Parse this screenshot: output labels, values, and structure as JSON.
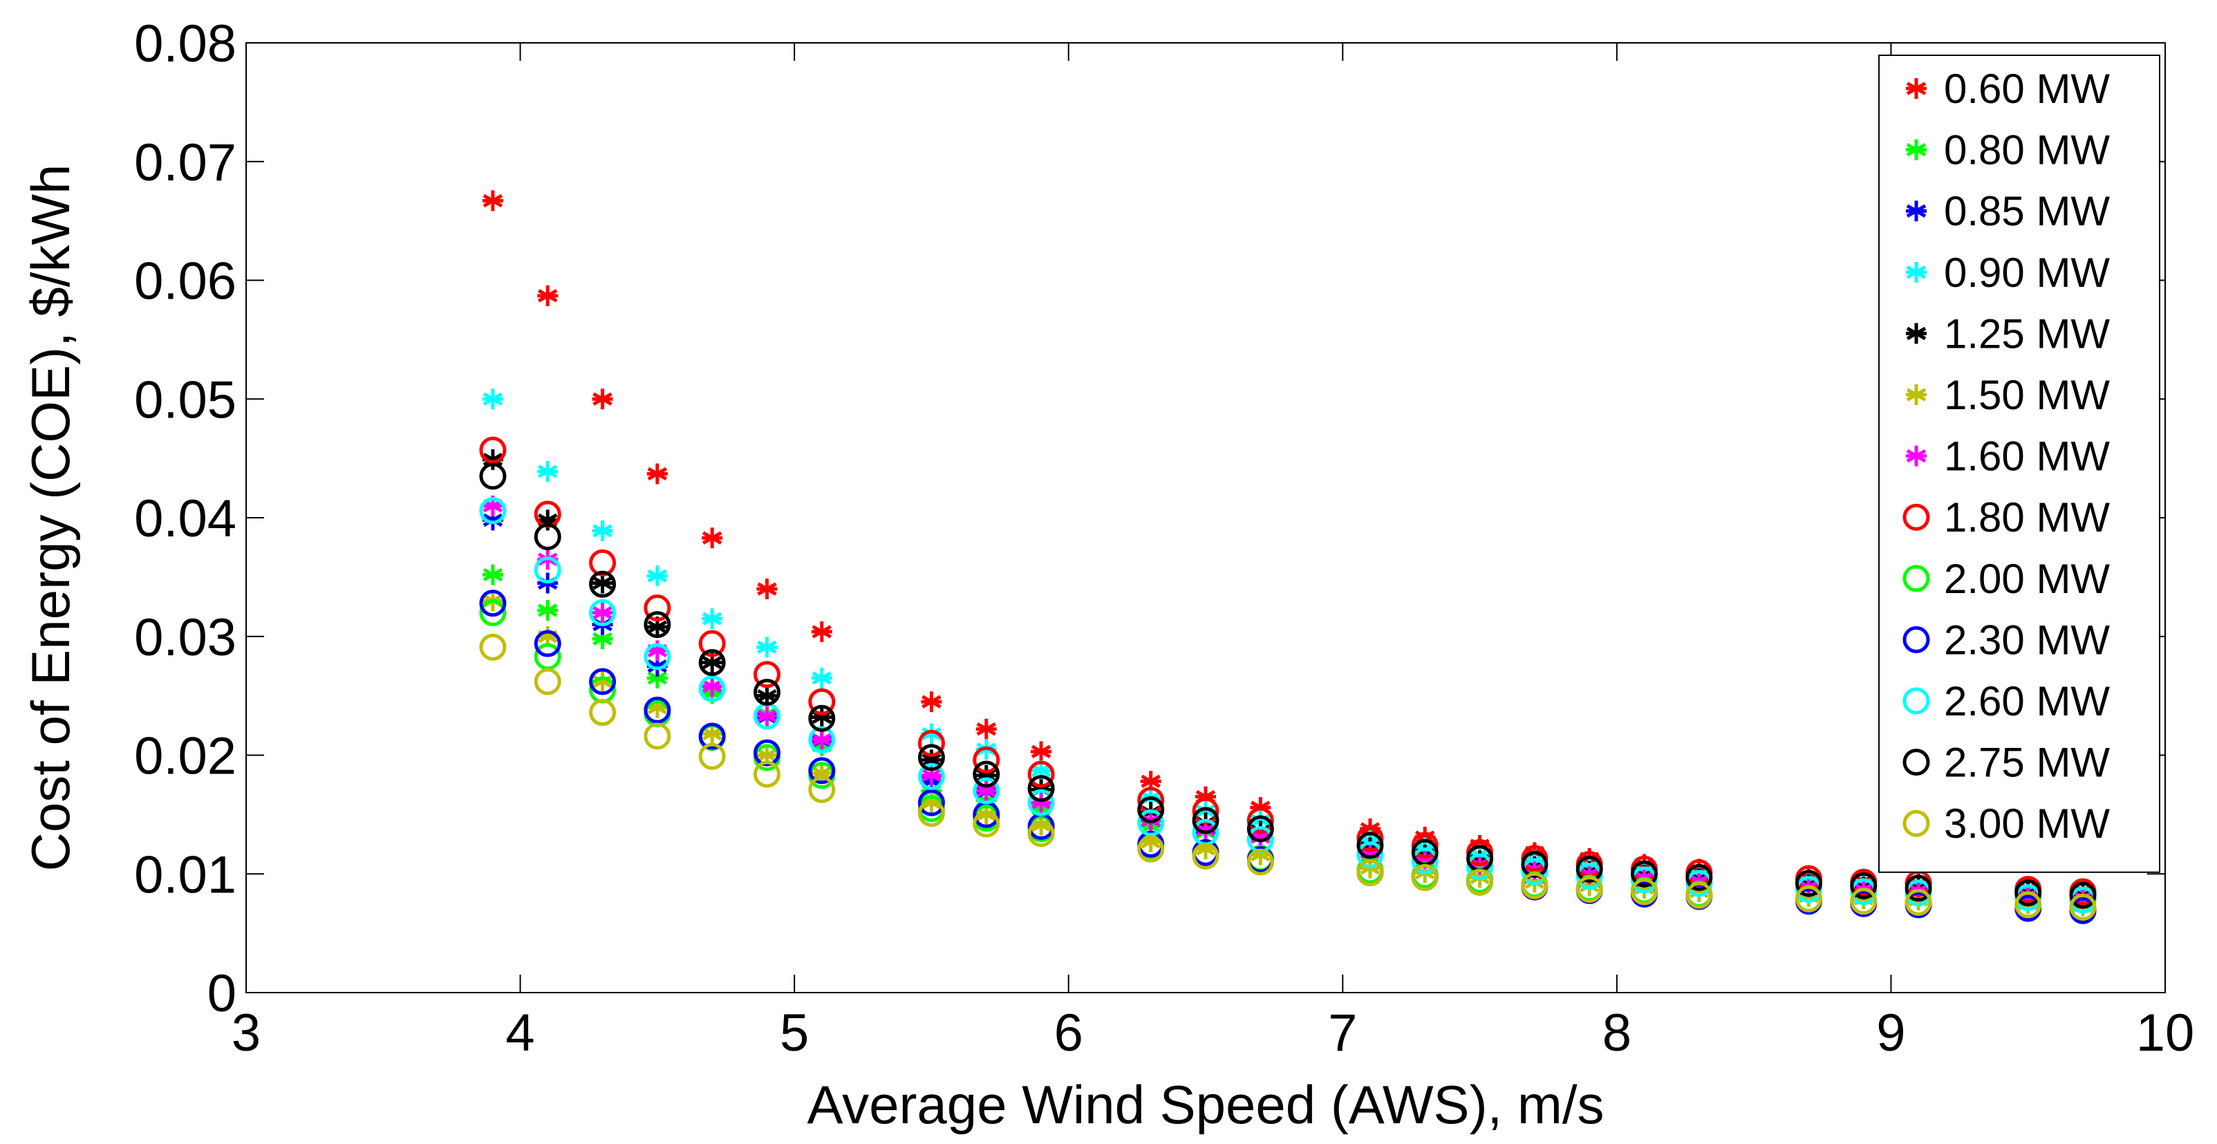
{
  "chart_data": {
    "type": "scatter",
    "title": "",
    "xlabel": "Average Wind Speed (AWS), m/s",
    "ylabel": "Cost of Energy (COE), $/kWh",
    "xlim": [
      3,
      10
    ],
    "ylim": [
      0,
      0.08
    ],
    "xticks": [
      3,
      4,
      5,
      6,
      7,
      8,
      9,
      10
    ],
    "yticks": [
      0,
      0.01,
      0.02,
      0.03,
      0.04,
      0.05,
      0.06,
      0.07,
      0.08
    ],
    "xtick_labels": [
      "3",
      "4",
      "5",
      "6",
      "7",
      "8",
      "9",
      "10"
    ],
    "ytick_labels": [
      "0",
      "0.01",
      "0.02",
      "0.03",
      "0.04",
      "0.05",
      "0.06",
      "0.07",
      "0.08"
    ],
    "grid": false,
    "legend_position": "top-right",
    "x": [
      3.9,
      4.1,
      4.3,
      4.5,
      4.7,
      4.9,
      5.1,
      5.5,
      5.7,
      5.9,
      6.3,
      6.5,
      6.7,
      7.1,
      7.3,
      7.5,
      7.7,
      7.9,
      8.1,
      8.3,
      8.7,
      8.9,
      9.1,
      9.5,
      9.7
    ],
    "series": [
      {
        "name": "0.60 MW",
        "marker": "star",
        "color": "#ff0000",
        "values": [
          0.0667,
          0.0587,
          0.05,
          0.0437,
          0.0383,
          0.034,
          0.0304,
          0.0245,
          0.0222,
          0.0203,
          0.0178,
          0.0165,
          0.0156,
          0.0138,
          0.0131,
          0.0124,
          0.0118,
          0.0113,
          0.0108,
          0.0104,
          0.0097,
          0.0094,
          0.0092,
          0.0088,
          0.0086
        ]
      },
      {
        "name": "0.80 MW",
        "marker": "star",
        "color": "#00ff00",
        "values": [
          0.0352,
          0.0322,
          0.0298,
          0.0265,
          0.0252,
          0.0235,
          0.0208,
          0.017,
          0.0162,
          0.0155,
          0.014,
          0.0135,
          0.0131,
          0.0118,
          0.0113,
          0.0109,
          0.0104,
          0.01,
          0.0097,
          0.0094,
          0.0089,
          0.0087,
          0.0086,
          0.0082,
          0.008
        ]
      },
      {
        "name": "0.85 MW",
        "marker": "star",
        "color": "#0000ff",
        "values": [
          0.0398,
          0.0345,
          0.031,
          0.0275,
          0.0258,
          0.0232,
          0.0212,
          0.0178,
          0.0169,
          0.016,
          0.0145,
          0.0138,
          0.0133,
          0.012,
          0.0115,
          0.011,
          0.0106,
          0.0102,
          0.0098,
          0.0095,
          0.009,
          0.0088,
          0.0087,
          0.0083,
          0.0081
        ]
      },
      {
        "name": "0.90 MW",
        "marker": "star",
        "color": "#00ffff",
        "values": [
          0.05,
          0.0439,
          0.0389,
          0.0351,
          0.0315,
          0.0291,
          0.0265,
          0.0218,
          0.0205,
          0.0187,
          0.0164,
          0.0153,
          0.0145,
          0.0128,
          0.0122,
          0.0116,
          0.0111,
          0.0106,
          0.0102,
          0.0099,
          0.0093,
          0.0091,
          0.0089,
          0.0085,
          0.0083
        ]
      },
      {
        "name": "1.25 MW",
        "marker": "star",
        "color": "#000000",
        "values": [
          0.0449,
          0.0398,
          0.0345,
          0.0308,
          0.0278,
          0.025,
          0.0232,
          0.0196,
          0.0183,
          0.0171,
          0.0152,
          0.0143,
          0.0136,
          0.0122,
          0.0116,
          0.0111,
          0.0106,
          0.0102,
          0.0099,
          0.0096,
          0.0091,
          0.0089,
          0.0088,
          0.0084,
          0.0082
        ]
      },
      {
        "name": "1.50 MW",
        "marker": "star",
        "color": "#bfbf00",
        "values": [
          0.033,
          0.03,
          0.0262,
          0.024,
          0.0218,
          0.02,
          0.0185,
          0.016,
          0.015,
          0.0141,
          0.0127,
          0.0121,
          0.0116,
          0.0105,
          0.0101,
          0.0097,
          0.0093,
          0.009,
          0.0088,
          0.0085,
          0.0081,
          0.0079,
          0.0078,
          0.0075,
          0.0073
        ]
      },
      {
        "name": "1.60 MW",
        "marker": "star",
        "color": "#ff00ff",
        "values": [
          0.041,
          0.0365,
          0.032,
          0.0288,
          0.0258,
          0.0233,
          0.0213,
          0.0183,
          0.017,
          0.016,
          0.0145,
          0.0137,
          0.0131,
          0.0118,
          0.0113,
          0.0108,
          0.0104,
          0.01,
          0.0097,
          0.0094,
          0.0089,
          0.0087,
          0.0086,
          0.0082,
          0.008
        ]
      },
      {
        "name": "1.80 MW",
        "marker": "circle",
        "color": "#ff0000",
        "values": [
          0.0457,
          0.0403,
          0.0362,
          0.0324,
          0.0294,
          0.0268,
          0.0245,
          0.021,
          0.0196,
          0.0184,
          0.0162,
          0.0153,
          0.0145,
          0.013,
          0.0124,
          0.0118,
          0.0113,
          0.0108,
          0.0104,
          0.0101,
          0.0096,
          0.0093,
          0.0092,
          0.0087,
          0.0085
        ]
      },
      {
        "name": "2.00 MW",
        "marker": "circle",
        "color": "#00ff00",
        "values": [
          0.032,
          0.0283,
          0.0255,
          0.0235,
          0.0215,
          0.0198,
          0.0183,
          0.0155,
          0.0147,
          0.0138,
          0.0124,
          0.0118,
          0.0113,
          0.0103,
          0.0099,
          0.0095,
          0.0091,
          0.0088,
          0.0086,
          0.0083,
          0.0079,
          0.0077,
          0.0076,
          0.0073,
          0.0071
        ]
      },
      {
        "name": "2.30 MW",
        "marker": "circle",
        "color": "#0000ff",
        "values": [
          0.0328,
          0.0294,
          0.0262,
          0.0238,
          0.0216,
          0.0202,
          0.0187,
          0.016,
          0.015,
          0.014,
          0.0125,
          0.0118,
          0.0112,
          0.0101,
          0.0097,
          0.0093,
          0.0089,
          0.0086,
          0.0083,
          0.0081,
          0.0077,
          0.0075,
          0.0074,
          0.0071,
          0.0069
        ]
      },
      {
        "name": "2.60 MW",
        "marker": "circle",
        "color": "#00ffff",
        "values": [
          0.0406,
          0.0356,
          0.032,
          0.0283,
          0.0256,
          0.0233,
          0.0213,
          0.0182,
          0.017,
          0.016,
          0.0143,
          0.0135,
          0.0129,
          0.0116,
          0.0111,
          0.0106,
          0.0102,
          0.0098,
          0.0095,
          0.0092,
          0.0087,
          0.0085,
          0.0084,
          0.008,
          0.0078
        ]
      },
      {
        "name": "2.75 MW",
        "marker": "circle",
        "color": "#000000",
        "values": [
          0.0435,
          0.0384,
          0.0344,
          0.031,
          0.0278,
          0.0253,
          0.0231,
          0.0198,
          0.0184,
          0.0172,
          0.0154,
          0.0145,
          0.0138,
          0.0124,
          0.0118,
          0.0113,
          0.0108,
          0.0104,
          0.01,
          0.0097,
          0.0092,
          0.009,
          0.0088,
          0.0084,
          0.0082
        ]
      },
      {
        "name": "3.00 MW",
        "marker": "circle",
        "color": "#bfbf00",
        "values": [
          0.0291,
          0.0262,
          0.0236,
          0.0216,
          0.0199,
          0.0184,
          0.0171,
          0.0151,
          0.0142,
          0.0134,
          0.0121,
          0.0115,
          0.011,
          0.0101,
          0.0097,
          0.0093,
          0.009,
          0.0087,
          0.0085,
          0.0082,
          0.0079,
          0.0077,
          0.0076,
          0.0074,
          0.0072
        ]
      }
    ]
  }
}
